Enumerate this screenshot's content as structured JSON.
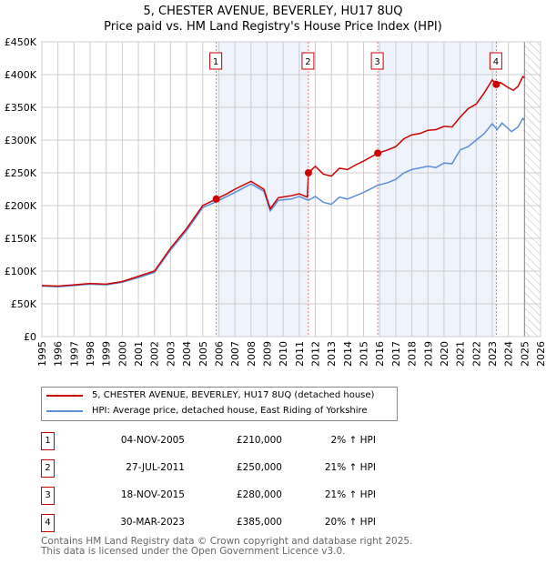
{
  "chart_data": {
    "type": "line",
    "title": "5, CHESTER AVENUE, BEVERLEY, HU17 8UQ",
    "subtitle": "Price paid vs. HM Land Registry's House Price Index (HPI)",
    "xlim": [
      1995,
      2026
    ],
    "ylim": [
      0,
      450000
    ],
    "yticks": [
      0,
      50000,
      100000,
      150000,
      200000,
      250000,
      300000,
      350000,
      400000,
      450000
    ],
    "ytick_labels": [
      "£0",
      "£50K",
      "£100K",
      "£150K",
      "£200K",
      "£250K",
      "£300K",
      "£350K",
      "£400K",
      "£450K"
    ],
    "xticks": [
      "1995",
      "1996",
      "1997",
      "1998",
      "1999",
      "2000",
      "2001",
      "2002",
      "2003",
      "2004",
      "2005",
      "2006",
      "2007",
      "2008",
      "2009",
      "2010",
      "2011",
      "2012",
      "2013",
      "2014",
      "2015",
      "2016",
      "2017",
      "2018",
      "2019",
      "2020",
      "2021",
      "2022",
      "2023",
      "2024",
      "2025",
      "2026"
    ],
    "grid": true,
    "forecast_hatch_from": 2025,
    "series": [
      {
        "name": "5, CHESTER AVENUE, BEVERLEY, HU17 8UQ (detached house)",
        "color": "#cc0000",
        "x": [
          1995,
          1996,
          1997,
          1998,
          1999,
          2000,
          2001,
          2002,
          2003,
          2004,
          2005,
          2005.84,
          2006.5,
          2007,
          2008,
          2008.8,
          2009.2,
          2009.7,
          2010.5,
          2011,
          2011.5,
          2011.57,
          2012,
          2012.5,
          2013,
          2013.5,
          2014,
          2014.5,
          2015,
          2015.88,
          2016.5,
          2017,
          2017.5,
          2018,
          2018.5,
          2019,
          2019.5,
          2020,
          2020.5,
          2021,
          2021.5,
          2022,
          2022.5,
          2023,
          2023.25,
          2023.5,
          2024,
          2024.3,
          2024.6,
          2024.9,
          2025
        ],
        "y": [
          78,
          77,
          79,
          81,
          80,
          84,
          92,
          100,
          135,
          165,
          200,
          210,
          218,
          225,
          237,
          225,
          195,
          212,
          215,
          218,
          213,
          250,
          260,
          248,
          245,
          257,
          255,
          262,
          268,
          280,
          285,
          290,
          302,
          308,
          310,
          315,
          316,
          321,
          320,
          335,
          348,
          355,
          372,
          392,
          385,
          388,
          380,
          376,
          382,
          397,
          395
        ]
      },
      {
        "name": "HPI: Average price, detached house, East Riding of Yorkshire",
        "color": "#5b8fd6",
        "x": [
          1995,
          1996,
          1997,
          1998,
          1999,
          2000,
          2001,
          2002,
          2003,
          2004,
          2005,
          2005.84,
          2007,
          2008,
          2008.8,
          2009.2,
          2009.7,
          2010.5,
          2011,
          2011.57,
          2012,
          2012.5,
          2013,
          2013.5,
          2014,
          2014.5,
          2015,
          2015.88,
          2016.5,
          2017,
          2017.5,
          2018,
          2019,
          2019.5,
          2020,
          2020.5,
          2021,
          2021.5,
          2022,
          2022.5,
          2023,
          2023.3,
          2023.6,
          2024.2,
          2024.6,
          2024.9,
          2025
        ],
        "y": [
          77,
          76,
          78,
          80,
          79,
          83,
          90,
          98,
          132,
          162,
          197,
          206,
          220,
          233,
          222,
          192,
          208,
          210,
          214,
          208,
          214,
          205,
          202,
          213,
          210,
          215,
          220,
          231,
          235,
          240,
          250,
          255,
          260,
          258,
          265,
          264,
          285,
          290,
          300,
          310,
          325,
          316,
          326,
          313,
          320,
          333,
          330
        ]
      }
    ],
    "y_units": "thousands GBP",
    "sales": [
      {
        "n": "1",
        "x": 2005.84,
        "price": 210000,
        "date": "04-NOV-2005",
        "price_label": "£210,000",
        "hpi": "2% ↑ HPI"
      },
      {
        "n": "2",
        "x": 2011.57,
        "price": 250000,
        "date": "27-JUL-2011",
        "price_label": "£250,000",
        "hpi": "21% ↑ HPI"
      },
      {
        "n": "3",
        "x": 2015.88,
        "price": 280000,
        "date": "18-NOV-2015",
        "price_label": "£280,000",
        "hpi": "21% ↑ HPI"
      },
      {
        "n": "4",
        "x": 2023.25,
        "price": 385000,
        "date": "30-MAR-2023",
        "price_label": "£385,000",
        "hpi": "20% ↑ HPI"
      }
    ]
  },
  "footer": {
    "line1": "Contains HM Land Registry data © Crown copyright and database right 2025.",
    "line2": "This data is licensed under the Open Government Licence v3.0."
  }
}
